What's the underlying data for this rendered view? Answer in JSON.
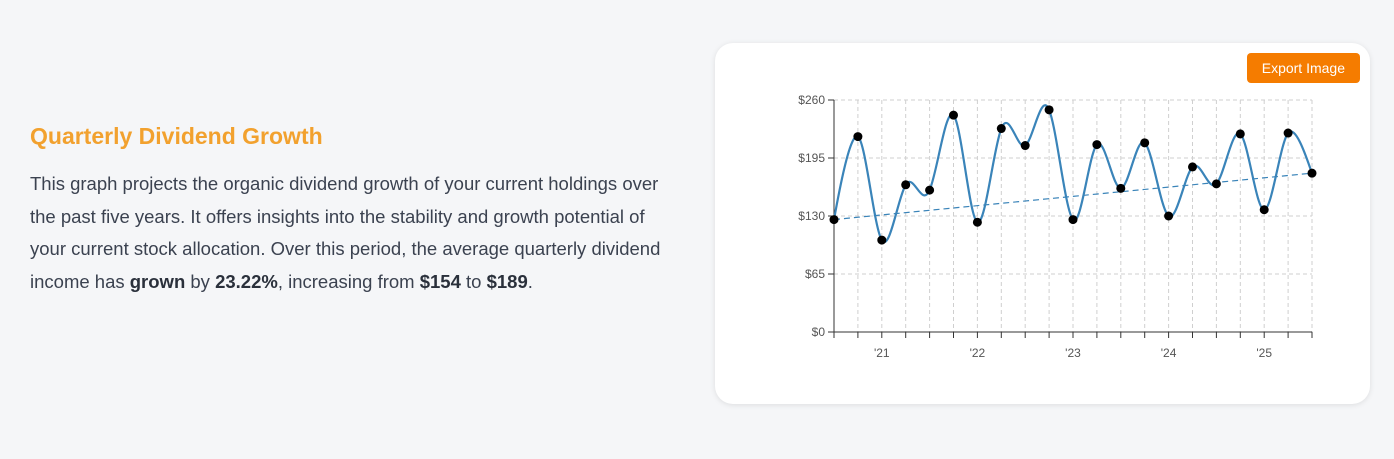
{
  "section": {
    "title": "Quarterly Dividend Growth",
    "desc_part1": "This graph projects the organic dividend growth of your current holdings over the past five years. It offers insights into the stability and growth potential of your current stock allocation. Over this period, the average quarterly dividend income has ",
    "desc_bold1": "grown",
    "desc_part2": " by ",
    "desc_bold2": "23.22%",
    "desc_part3": ", increasing from ",
    "desc_bold3": "$154",
    "desc_part4": " to ",
    "desc_bold4": "$189",
    "desc_part5": "."
  },
  "toolbar": {
    "export_label": "Export Image"
  },
  "colors": {
    "line": "#3a84b9",
    "point": "#000000",
    "trend": "#3a84b9",
    "accent": "#f57c00",
    "title": "#f2a12e"
  },
  "chart_data": {
    "type": "line",
    "ylim": [
      0,
      260
    ],
    "yticks": [
      0,
      65,
      130,
      195,
      260
    ],
    "ytick_labels": [
      "$0",
      "$65",
      "$130",
      "$195",
      "$260"
    ],
    "xtick_labels": [
      "'21",
      "'22",
      "'23",
      "'24",
      "'25"
    ],
    "xtick_label_positions": [
      2,
      6,
      10,
      14,
      18
    ],
    "grid": true,
    "series": [
      {
        "values": [
          126,
          219,
          103,
          165,
          159,
          243,
          123,
          228,
          209,
          249,
          126,
          210,
          161,
          212,
          130,
          185,
          166,
          222,
          137,
          223,
          178
        ]
      }
    ],
    "trend": {
      "start": 126,
      "end": 178
    }
  }
}
